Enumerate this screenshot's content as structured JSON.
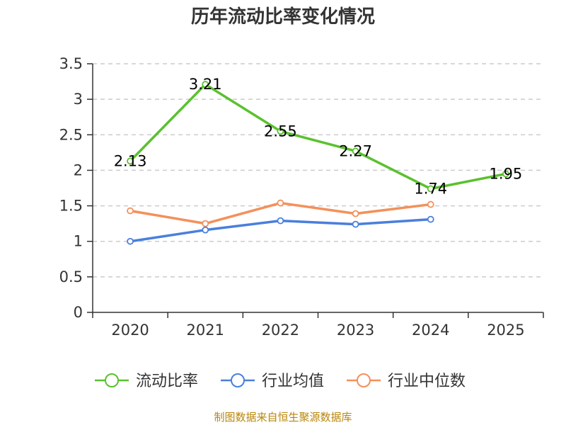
{
  "title": "历年流动比率变化情况",
  "source": "制图数据来自恒生聚源数据库",
  "chart_data": {
    "type": "line",
    "title": "历年流动比率变化情况",
    "categories": [
      "2020",
      "2021",
      "2022",
      "2023",
      "2024",
      "2025"
    ],
    "ylim": [
      0,
      3.5
    ],
    "yticks": [
      "0",
      "0.5",
      "1",
      "1.5",
      "2",
      "2.5",
      "3",
      "3.5"
    ],
    "grid": true,
    "legend_position": "bottom",
    "series": [
      {
        "name": "流动比率",
        "color": "#5ac12e",
        "values": [
          2.13,
          3.21,
          2.55,
          2.27,
          1.74,
          1.95
        ],
        "labels": [
          "2.13",
          "3.21",
          "2.55",
          "2.27",
          "1.74",
          "1.95"
        ],
        "show_labels": true
      },
      {
        "name": "行业均值",
        "color": "#4a7fdc",
        "values": [
          1.0,
          1.16,
          1.29,
          1.24,
          1.31,
          null
        ],
        "show_labels": false
      },
      {
        "name": "行业中位数",
        "color": "#f4905a",
        "values": [
          1.43,
          1.25,
          1.54,
          1.39,
          1.52,
          null
        ],
        "show_labels": false
      }
    ]
  }
}
